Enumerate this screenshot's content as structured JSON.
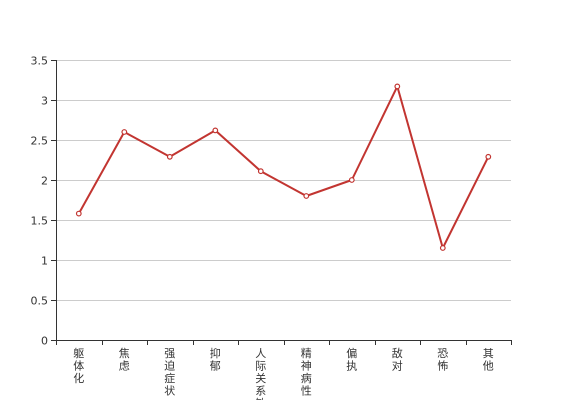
{
  "chart_data": {
    "type": "line",
    "title": "",
    "xlabel": "",
    "ylabel": "",
    "categories": [
      "躯体化",
      "焦虑",
      "强迫症状",
      "抑郁",
      "人际关系敏",
      "精神病性",
      "偏执",
      "敌对",
      "恐怖",
      "其他"
    ],
    "series": [
      {
        "values": [
          1.58,
          2.6,
          2.29,
          2.62,
          2.11,
          1.8,
          2.0,
          3.17,
          1.15,
          2.29
        ]
      }
    ],
    "ylim": [
      0,
      3.5
    ],
    "yticks": [
      0,
      0.5,
      1,
      1.5,
      2,
      2.5,
      3,
      3.5
    ],
    "ytick_labels": [
      "0",
      "0.5",
      "1",
      "1.5",
      "2",
      "2.5",
      "3",
      "3.5"
    ],
    "grid": true,
    "legend": "none",
    "colors": {
      "line": "#c23531",
      "marker_fill": "#ffffff",
      "grid": "#cccccc",
      "axis": "#333333",
      "text": "#333333"
    }
  }
}
